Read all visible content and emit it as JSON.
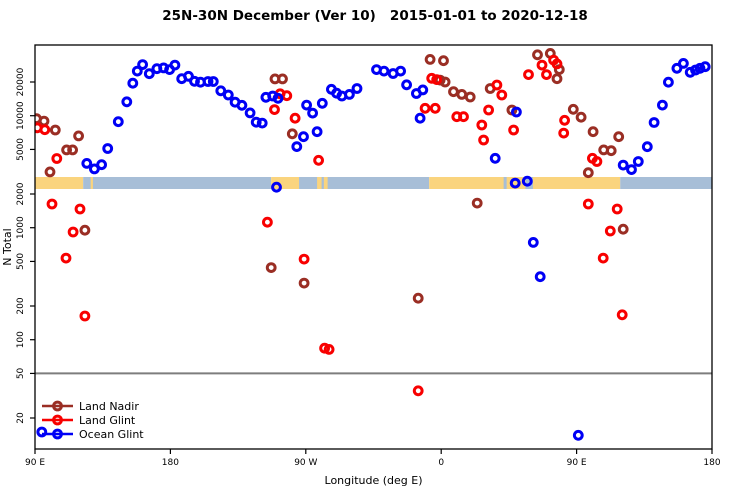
{
  "title": "25N-30N December (Ver 10)   2015-01-01 to 2020-12-18",
  "axes": {
    "x": {
      "label": "Longitude (deg E)",
      "range_deg": [
        90,
        540
      ],
      "ticks": [
        {
          "value": 90,
          "label": "90 E"
        },
        {
          "value": 180,
          "label": "180"
        },
        {
          "value": 270,
          "label": "90 W"
        },
        {
          "value": 360,
          "label": "0"
        },
        {
          "value": 450,
          "label": "90 E"
        },
        {
          "value": 540,
          "label": "180"
        }
      ]
    },
    "y": {
      "label": "N Total",
      "scale": "log",
      "ticks": [
        20000,
        10000,
        5000,
        2000,
        1000,
        500,
        200,
        100,
        50,
        20
      ]
    }
  },
  "reference_line": {
    "value": 50,
    "color": "#7d7d7d"
  },
  "land_ocean_band": {
    "colors": {
      "land": "#FAD47E",
      "ocean": "#A7BED7"
    },
    "segments": [
      {
        "from": 90,
        "to": 122,
        "type": "land"
      },
      {
        "from": 122,
        "to": 247,
        "type": "ocean"
      },
      {
        "from": 247,
        "to": 265.5,
        "type": "land"
      },
      {
        "from": 265.5,
        "to": 352,
        "type": "ocean"
      },
      {
        "from": 352,
        "to": 479,
        "type": "land"
      },
      {
        "from": 479,
        "to": 540,
        "type": "ocean"
      }
    ],
    "islands": [
      [
        127,
        128.5
      ],
      [
        277.5,
        280.5
      ],
      [
        282,
        284.5
      ]
    ],
    "waters": [
      [
        401.5,
        403.5
      ],
      [
        416,
        421
      ]
    ]
  },
  "legend": [
    {
      "label": "Land Nadir",
      "series": "land_nadir"
    },
    {
      "label": "Land Glint",
      "series": "land_glint"
    },
    {
      "label": "Ocean Glint",
      "series": "ocean_glint"
    }
  ],
  "chart_data": {
    "type": "scatter",
    "x_units": "degrees longitude east (axis wraps 90E → 180 → 90W → 0 → 90E → 180)",
    "y_units": "N Total (log scale)",
    "xlim": [
      90,
      540
    ],
    "ylim_log": [
      10.6,
      42800
    ],
    "series": [
      {
        "name": "Land Nadir",
        "color": "#9A2E24",
        "points": [
          [
            91,
            9400
          ],
          [
            96,
            8950
          ],
          [
            103.5,
            7450
          ],
          [
            100,
            3150
          ],
          [
            111,
            4950
          ],
          [
            115,
            4950
          ],
          [
            119,
            6600
          ],
          [
            123.2,
            950
          ],
          [
            249.5,
            21300
          ],
          [
            254.5,
            21300
          ],
          [
            261,
            6900
          ],
          [
            247,
            440
          ],
          [
            268.9,
            320
          ],
          [
            344.7,
            235
          ],
          [
            352.6,
            31800
          ],
          [
            361.5,
            31000
          ],
          [
            359.3,
            20800
          ],
          [
            362.6,
            20000
          ],
          [
            368.2,
            16400
          ],
          [
            373.7,
            15500
          ],
          [
            379.3,
            14700
          ],
          [
            392.6,
            17500
          ],
          [
            407,
            11250
          ],
          [
            383.9,
            1660
          ],
          [
            424,
            35000
          ],
          [
            432.5,
            36000
          ],
          [
            438.5,
            25800
          ],
          [
            437,
            21400
          ],
          [
            447.8,
            11400
          ],
          [
            453,
            9700
          ],
          [
            457.8,
            3100
          ],
          [
            461,
            7200
          ],
          [
            478,
            6500
          ],
          [
            468,
            4950
          ],
          [
            473,
            4870
          ],
          [
            481,
            970
          ]
        ]
      },
      {
        "name": "Land Glint",
        "color": "#F80000",
        "points": [
          [
            91.5,
            7800
          ],
          [
            96.5,
            7500
          ],
          [
            104.5,
            4150
          ],
          [
            101.3,
            1630
          ],
          [
            119.9,
            1470
          ],
          [
            115.3,
            915
          ],
          [
            110.6,
            535
          ],
          [
            123.2,
            163
          ],
          [
            244.5,
            1120
          ],
          [
            252.9,
            15700
          ],
          [
            257.4,
            15100
          ],
          [
            249.2,
            11350
          ],
          [
            262.9,
            9500
          ],
          [
            268.9,
            525
          ],
          [
            278.5,
            4000
          ],
          [
            282.5,
            84
          ],
          [
            285.5,
            82
          ],
          [
            344.7,
            35
          ],
          [
            349.3,
            11650
          ],
          [
            356,
            11650
          ],
          [
            353.7,
            21600
          ],
          [
            357,
            21000
          ],
          [
            370.4,
            9800
          ],
          [
            374.8,
            9800
          ],
          [
            387,
            8260
          ],
          [
            388.2,
            6070
          ],
          [
            391.5,
            11250
          ],
          [
            397,
            18800
          ],
          [
            400.3,
            15300
          ],
          [
            408.1,
            7450
          ],
          [
            418,
            23300
          ],
          [
            427,
            28300
          ],
          [
            430,
            23300
          ],
          [
            434.7,
            31400
          ],
          [
            437,
            29000
          ],
          [
            442,
            9100
          ],
          [
            441.4,
            7000
          ],
          [
            460.5,
            4170
          ],
          [
            463.5,
            3900
          ],
          [
            457.8,
            1630
          ],
          [
            477,
            1470
          ],
          [
            472.4,
            935
          ],
          [
            467.7,
            535
          ],
          [
            480.3,
            167
          ]
        ]
      },
      {
        "name": "Ocean Glint",
        "color": "#0000F5",
        "points": [
          [
            94.5,
            15
          ],
          [
            124.4,
            3750
          ],
          [
            129.5,
            3350
          ],
          [
            134.3,
            3650
          ],
          [
            138.3,
            5100
          ],
          [
            145.4,
            8850
          ],
          [
            151,
            13300
          ],
          [
            155,
            19500
          ],
          [
            158,
            25000
          ],
          [
            161.5,
            28600
          ],
          [
            166,
            23700
          ],
          [
            171,
            26300
          ],
          [
            175.5,
            26700
          ],
          [
            179.5,
            25800
          ],
          [
            183,
            28300
          ],
          [
            187.5,
            21400
          ],
          [
            192,
            22500
          ],
          [
            196,
            20300
          ],
          [
            200,
            19900
          ],
          [
            205,
            20200
          ],
          [
            208.5,
            20200
          ],
          [
            213.5,
            16700
          ],
          [
            218.5,
            15300
          ],
          [
            223,
            13200
          ],
          [
            227.5,
            12400
          ],
          [
            233,
            10600
          ],
          [
            237,
            8750
          ],
          [
            241,
            8600
          ],
          [
            243.5,
            14600
          ],
          [
            248,
            15000
          ],
          [
            251.5,
            14300
          ],
          [
            250.5,
            2300
          ],
          [
            264,
            5300
          ],
          [
            268.5,
            6500
          ],
          [
            270.5,
            12450
          ],
          [
            274.5,
            10550
          ],
          [
            277.5,
            7200
          ],
          [
            281,
            12900
          ],
          [
            287,
            17200
          ],
          [
            290.5,
            15900
          ],
          [
            294,
            15000
          ],
          [
            299,
            15500
          ],
          [
            304,
            17500
          ],
          [
            317,
            25800
          ],
          [
            322,
            25000
          ],
          [
            328,
            23800
          ],
          [
            333,
            25000
          ],
          [
            337,
            18900
          ],
          [
            343.5,
            15800
          ],
          [
            347.8,
            17000
          ],
          [
            346,
            9500
          ],
          [
            395.9,
            4170
          ],
          [
            410,
            10800
          ],
          [
            409.2,
            2500
          ],
          [
            417.2,
            2600
          ],
          [
            421.2,
            740
          ],
          [
            425.8,
            365
          ],
          [
            451.1,
            14
          ],
          [
            481,
            3620
          ],
          [
            486.5,
            3300
          ],
          [
            491,
            3900
          ],
          [
            497,
            5290
          ],
          [
            501.5,
            8700
          ],
          [
            507,
            12450
          ],
          [
            511,
            19900
          ],
          [
            516.7,
            26500
          ],
          [
            521,
            29300
          ],
          [
            525.5,
            24400
          ],
          [
            529,
            25600
          ],
          [
            532,
            26500
          ],
          [
            535.5,
            27400
          ]
        ]
      }
    ]
  }
}
